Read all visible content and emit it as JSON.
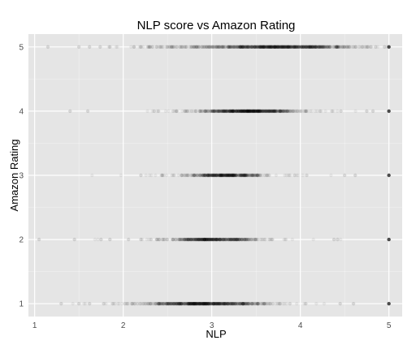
{
  "chart_data": {
    "type": "scatter",
    "title": "NLP score vs Amazon Rating",
    "xlabel": "NLP",
    "ylabel": "Amazon Rating",
    "xlim": [
      0.93,
      5.15
    ],
    "ylim": [
      0.8,
      5.2
    ],
    "x_ticks": [
      1,
      2,
      3,
      4,
      5
    ],
    "y_ticks": [
      1,
      2,
      3,
      4,
      5
    ],
    "grid": true,
    "point_color": "#000000",
    "panel_background": "#e5e5e5",
    "grid_color": "#ffffff",
    "rows": [
      {
        "rating": 5,
        "outliers": [
          1.15,
          1.5,
          1.62,
          1.74,
          1.85,
          2.12,
          2.2,
          4.75,
          4.85,
          4.95,
          5.0
        ],
        "clusters": [
          {
            "center": 3.75,
            "spread": 0.45,
            "count": 850
          },
          {
            "center": 2.6,
            "spread": 0.3,
            "count": 80
          }
        ]
      },
      {
        "rating": 4,
        "outliers": [
          1.4,
          1.6,
          2.35,
          4.75,
          4.82,
          5.0
        ],
        "clusters": [
          {
            "center": 3.4,
            "spread": 0.28,
            "count": 620
          },
          {
            "center": 3.4,
            "spread": 0.55,
            "count": 90
          }
        ]
      },
      {
        "rating": 3,
        "outliers": [
          2.2,
          4.5,
          4.62,
          5.0
        ],
        "clusters": [
          {
            "center": 3.15,
            "spread": 0.22,
            "count": 420
          },
          {
            "center": 3.2,
            "spread": 0.55,
            "count": 70
          }
        ]
      },
      {
        "rating": 2,
        "outliers": [
          1.05,
          1.45,
          1.75,
          1.85,
          2.2,
          4.38,
          4.42,
          5.0
        ],
        "clusters": [
          {
            "center": 3.0,
            "spread": 0.25,
            "count": 420
          },
          {
            "center": 3.0,
            "spread": 0.5,
            "count": 80
          }
        ]
      },
      {
        "rating": 1,
        "outliers": [
          1.3,
          1.5,
          1.62,
          1.78,
          1.88,
          4.45,
          4.6,
          5.0
        ],
        "clusters": [
          {
            "center": 2.9,
            "spread": 0.33,
            "count": 650
          },
          {
            "center": 3.0,
            "spread": 0.6,
            "count": 120
          }
        ]
      }
    ]
  }
}
